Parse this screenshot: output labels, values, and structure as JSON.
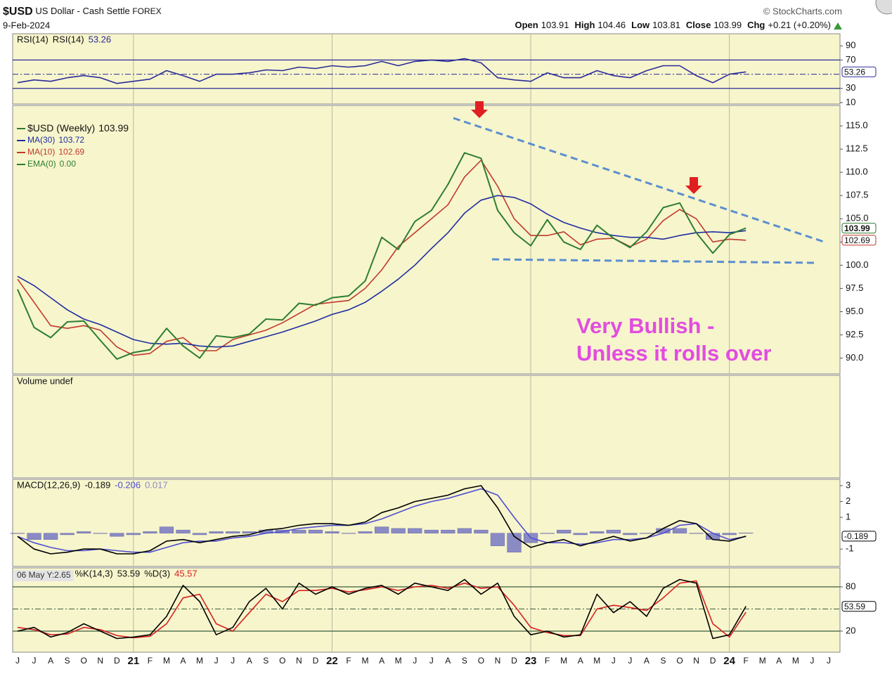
{
  "header": {
    "symbol": "$USD",
    "name": "US Dollar - Cash Settle",
    "exchange": "FOREX",
    "source": "© StockCharts.com",
    "date": "9-Feb-2024",
    "quote": [
      {
        "label": "Open",
        "value": "103.91"
      },
      {
        "label": "High",
        "value": "104.46"
      },
      {
        "label": "Low",
        "value": "103.81"
      },
      {
        "label": "Close",
        "value": "103.99"
      },
      {
        "label": "Chg",
        "value": "+0.21 (+0.20%)"
      }
    ]
  },
  "chart_data": [
    {
      "type": "line",
      "title": "RSI(14)",
      "ylim": [
        8,
        107
      ],
      "yticks": [
        10,
        30,
        70,
        90
      ],
      "hlines": [
        30,
        70
      ],
      "midline": 50,
      "series": [
        {
          "name": "RSI(14)",
          "color": "#2b2b99",
          "tag": true,
          "values": [
            38,
            42,
            40,
            45,
            48,
            45,
            37,
            40,
            43,
            55,
            48,
            40,
            50,
            50,
            52,
            56,
            55,
            60,
            58,
            62,
            60,
            62,
            68,
            62,
            68,
            70,
            68,
            72,
            66,
            45,
            42,
            40,
            52,
            45,
            45,
            55,
            48,
            45,
            55,
            62,
            62,
            48,
            38,
            50,
            53.26,
            null,
            null,
            null,
            null,
            null
          ]
        }
      ]
    },
    {
      "type": "line",
      "ylim": [
        88.3,
        117.2
      ],
      "yticks": [
        {
          "value": 90,
          "label": "90.0"
        },
        92.5,
        {
          "value": 95,
          "label": "95.0"
        },
        97.5,
        {
          "value": 100,
          "label": "100.0"
        },
        102.5,
        {
          "value": 105,
          "label": "105.0"
        },
        107.5,
        {
          "value": 110,
          "label": "110.0"
        },
        112.5,
        {
          "value": 115,
          "label": "115.0"
        }
      ],
      "categories": [
        "J",
        "J",
        "A",
        "S",
        "O",
        "N",
        "D",
        "21",
        "F",
        "M",
        "A",
        "M",
        "J",
        "J",
        "A",
        "S",
        "O",
        "N",
        "D",
        "22",
        "F",
        "M",
        "A",
        "M",
        "J",
        "J",
        "A",
        "S",
        "O",
        "N",
        "D",
        "23",
        "F",
        "M",
        "A",
        "M",
        "J",
        "J",
        "A",
        "S",
        "O",
        "N",
        "D",
        "24",
        "F",
        "M",
        "A",
        "M",
        "J",
        "J"
      ],
      "series": [
        {
          "name": "$USD (Weekly)",
          "color": "#2e7d32",
          "tag": true,
          "values": [
            97.4,
            93.3,
            92.2,
            93.9,
            94.0,
            91.9,
            89.9,
            90.6,
            90.9,
            93.2,
            91.3,
            90.0,
            92.4,
            92.2,
            92.6,
            94.2,
            94.1,
            95.9,
            95.7,
            96.5,
            96.7,
            98.3,
            103.0,
            101.7,
            104.7,
            105.9,
            108.7,
            112.1,
            111.5,
            105.9,
            103.5,
            102.1,
            104.9,
            102.5,
            101.7,
            104.3,
            102.9,
            101.9,
            103.6,
            106.2,
            106.7,
            103.5,
            101.3,
            103.3,
            103.99,
            null,
            null,
            null,
            null,
            null
          ]
        },
        {
          "name": "MA(30)",
          "color": "#1f2f9f",
          "values": [
            98.8,
            97.8,
            96.5,
            95.2,
            94.2,
            93.6,
            92.8,
            92.0,
            91.6,
            91.5,
            91.6,
            91.3,
            91.2,
            91.3,
            91.8,
            92.3,
            92.8,
            93.4,
            94.0,
            94.7,
            95.2,
            96.0,
            97.2,
            98.5,
            100.0,
            101.8,
            103.5,
            105.6,
            107.0,
            107.5,
            107.3,
            106.6,
            105.5,
            104.6,
            104.0,
            103.5,
            103.2,
            103.0,
            103.0,
            102.8,
            103.2,
            103.5,
            103.6,
            103.5,
            103.72,
            null,
            null,
            null,
            null,
            null
          ]
        },
        {
          "name": "MA(10)",
          "color": "#c0392b",
          "tag": true,
          "values": [
            98.5,
            96.0,
            93.5,
            93.2,
            93.5,
            93.0,
            91.2,
            90.3,
            90.5,
            91.8,
            92.2,
            90.8,
            90.8,
            92.0,
            92.5,
            93.0,
            93.8,
            94.8,
            95.8,
            96.0,
            96.2,
            97.5,
            99.5,
            102.0,
            103.5,
            105.0,
            106.5,
            109.5,
            111.3,
            108.5,
            105.0,
            103.2,
            103.2,
            103.6,
            102.2,
            102.8,
            102.9,
            102.0,
            102.8,
            104.8,
            106.0,
            105.0,
            102.5,
            102.8,
            102.69,
            null,
            null,
            null,
            null,
            null
          ]
        }
      ],
      "extra_legend": [
        {
          "name": "EMA(0)",
          "label": "0.00",
          "color": "#2e7d32"
        }
      ],
      "annotations": [
        "Very Bullish -",
        "Unless it rolls over"
      ]
    },
    {
      "type": "bar",
      "title": "Volume undef"
    },
    {
      "type": "line",
      "title": "MACD(12,26,9)",
      "ylim": [
        -2.1,
        3.4
      ],
      "yticks": [
        -1,
        1,
        2,
        3
      ],
      "series": [
        {
          "color": "#000000",
          "tag": true,
          "values": [
            -0.2,
            -1.0,
            -1.3,
            -1.2,
            -1.0,
            -1.0,
            -1.3,
            -1.3,
            -1.1,
            -0.5,
            -0.4,
            -0.6,
            -0.4,
            -0.2,
            -0.1,
            0.2,
            0.3,
            0.5,
            0.6,
            0.6,
            0.5,
            0.7,
            1.3,
            1.6,
            2.0,
            2.2,
            2.4,
            2.8,
            3.0,
            1.6,
            -0.2,
            -0.9,
            -0.6,
            -0.4,
            -0.8,
            -0.5,
            -0.2,
            -0.5,
            -0.3,
            0.3,
            0.8,
            0.6,
            -0.4,
            -0.5,
            -0.189,
            null,
            null,
            null,
            null,
            null
          ]
        },
        {
          "color": "#4f4fd0",
          "values": [
            -0.2,
            -0.6,
            -0.9,
            -1.1,
            -1.1,
            -1.0,
            -1.1,
            -1.2,
            -1.2,
            -0.9,
            -0.6,
            -0.5,
            -0.5,
            -0.3,
            -0.2,
            0.0,
            0.1,
            0.3,
            0.4,
            0.5,
            0.5,
            0.6,
            0.9,
            1.3,
            1.7,
            2.0,
            2.2,
            2.5,
            2.8,
            2.4,
            1.0,
            -0.3,
            -0.6,
            -0.6,
            -0.7,
            -0.6,
            -0.4,
            -0.4,
            -0.3,
            0.0,
            0.5,
            0.6,
            0.0,
            -0.4,
            -0.206,
            null,
            null,
            null,
            null,
            null
          ]
        },
        {
          "color": "#8a8ac4",
          "type": "bar",
          "values": [
            0,
            -0.4,
            -0.4,
            -0.1,
            0.1,
            0,
            -0.2,
            -0.1,
            0.1,
            0.4,
            0.2,
            -0.1,
            0.1,
            0.1,
            0.1,
            0.2,
            0.2,
            0.2,
            0.2,
            0.1,
            0,
            0.1,
            0.4,
            0.3,
            0.3,
            0.2,
            0.2,
            0.3,
            0.2,
            -0.8,
            -1.2,
            -0.6,
            0,
            0.2,
            -0.1,
            0.1,
            0.2,
            -0.1,
            0,
            0.3,
            0.3,
            0,
            -0.4,
            -0.1,
            0.017,
            null,
            null,
            null,
            null,
            null
          ]
        }
      ]
    },
    {
      "type": "line",
      "tooltip": "06 May Y:2.65",
      "ylim": [
        -8.6,
        105.7
      ],
      "yticks": [
        20,
        80
      ],
      "hlines": [
        20,
        80
      ],
      "midline": 50,
      "series": [
        {
          "name": "%K(14,3)",
          "color": "#000000",
          "tag": true,
          "values": [
            20,
            25,
            12,
            18,
            30,
            20,
            10,
            12,
            15,
            40,
            82,
            60,
            15,
            25,
            60,
            78,
            50,
            85,
            70,
            80,
            70,
            78,
            82,
            70,
            85,
            80,
            75,
            90,
            70,
            85,
            40,
            15,
            20,
            12,
            15,
            70,
            45,
            60,
            40,
            78,
            90,
            85,
            10,
            15,
            53.59,
            null,
            null,
            null,
            null,
            null
          ]
        },
        {
          "name": "%D(3)",
          "color": "#d62020",
          "values": [
            25,
            22,
            15,
            16,
            25,
            22,
            14,
            11,
            13,
            30,
            65,
            70,
            30,
            20,
            45,
            70,
            60,
            75,
            75,
            78,
            73,
            76,
            80,
            75,
            80,
            82,
            78,
            85,
            78,
            80,
            55,
            25,
            18,
            14,
            14,
            50,
            55,
            52,
            48,
            65,
            85,
            88,
            30,
            12,
            45.57,
            null,
            null,
            null,
            null,
            null
          ]
        }
      ]
    }
  ]
}
